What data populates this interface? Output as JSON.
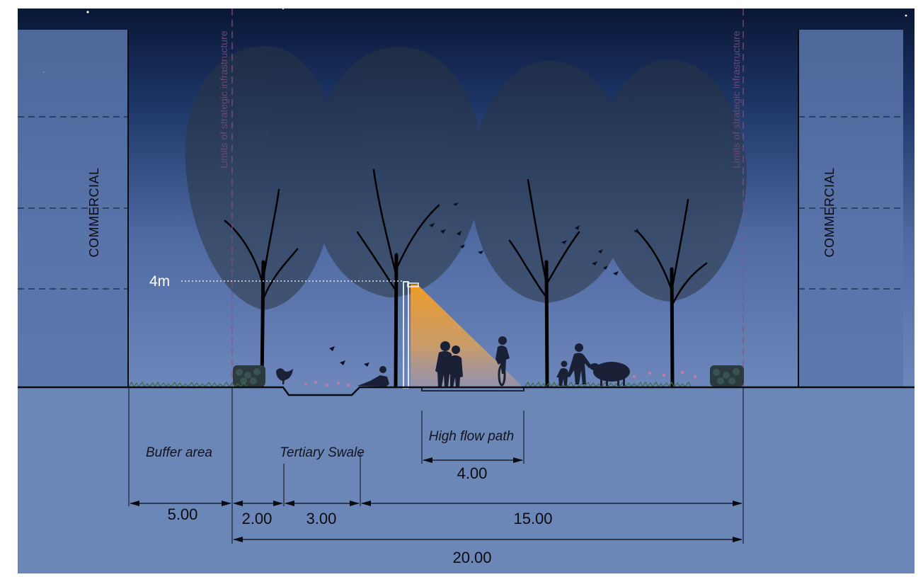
{
  "buildings": {
    "left_label": "COMMERCIAL",
    "right_label": "COMMERCIAL"
  },
  "limit_labels": {
    "left": "Limits of strategic infrastructure",
    "right": "Limits of strategic infrastructure"
  },
  "height_marker": "4m",
  "zones": {
    "buffer_area": "Buffer area",
    "tertiary_swale": "Tertiary Swale",
    "high_flow_path": "High flow path"
  },
  "dimensions": {
    "high_flow_path": "4.00",
    "buffer": "5.00",
    "edge": "2.00",
    "swale": "3.00",
    "corridor_rest": "15.00",
    "total": "20.00"
  },
  "colors": {
    "sky_top": "#0b1a3c",
    "sky_bottom": "#6b86b9",
    "ground": "#6a87b8",
    "canopy": "#2a3644",
    "light_cone": "#f4a52c"
  }
}
